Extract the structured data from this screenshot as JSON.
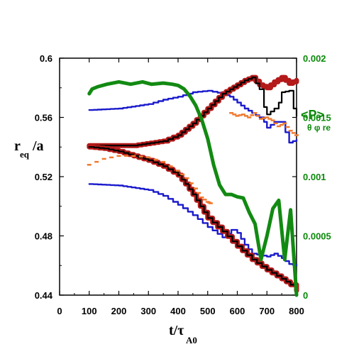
{
  "chart_data": {
    "type": "line",
    "xlabel_main": "t/τ",
    "xlabel_sub": "A0",
    "ylabel_main": "r",
    "ylabel_sub": "eq",
    "ylabel_tail": "/a",
    "y2label_main": "<P>",
    "y2label_sub": "θ φ re",
    "xlim": [
      0,
      800
    ],
    "ylim": [
      0.44,
      0.6
    ],
    "y2lim": [
      0,
      0.002
    ],
    "x_ticks": [
      "0",
      "100",
      "200",
      "300",
      "400",
      "500",
      "600",
      "700",
      "800"
    ],
    "y_ticks": [
      "0.44",
      "0.48",
      "0.52",
      "0.56",
      "0.6"
    ],
    "y2_ticks": [
      "0",
      "0.0005",
      "0.001",
      "0.0015",
      "0.002"
    ],
    "colors": {
      "red": "#b41a1a",
      "black": "#000000",
      "blue": "#1a1acc",
      "orange": "#f07a30",
      "green": "#128a12"
    },
    "series": [
      {
        "key": "red_upper",
        "axis": "left",
        "color": "red",
        "style": "thick",
        "x": [
          100,
          250,
          350,
          400,
          425,
          450,
          475,
          500,
          525,
          550,
          575,
          600,
          625,
          650,
          675,
          700,
          725,
          750,
          775,
          800
        ],
        "y": [
          0.541,
          0.541,
          0.544,
          0.548,
          0.552,
          0.556,
          0.561,
          0.566,
          0.571,
          0.576,
          0.579,
          0.582,
          0.585,
          0.587,
          0.582,
          0.58,
          0.584,
          0.587,
          0.583,
          0.585
        ]
      },
      {
        "key": "black_upper",
        "axis": "left",
        "color": "black",
        "style": "medium",
        "x": [
          100,
          250,
          350,
          400,
          425,
          450,
          475,
          500,
          525,
          550,
          575,
          600,
          625,
          650,
          675,
          690,
          700,
          725,
          740,
          750,
          775,
          790,
          800
        ],
        "y": [
          0.541,
          0.541,
          0.544,
          0.548,
          0.552,
          0.556,
          0.561,
          0.566,
          0.571,
          0.576,
          0.579,
          0.582,
          0.585,
          0.587,
          0.579,
          0.567,
          0.562,
          0.566,
          0.57,
          0.577,
          0.578,
          0.566,
          0.561
        ]
      },
      {
        "key": "red_lower",
        "axis": "left",
        "color": "red",
        "style": "thick",
        "x": [
          100,
          150,
          200,
          250,
          300,
          350,
          400,
          425,
          450,
          475,
          500,
          550,
          600,
          650,
          700,
          750,
          780,
          800
        ],
        "y": [
          0.54,
          0.539,
          0.537,
          0.534,
          0.531,
          0.527,
          0.521,
          0.515,
          0.508,
          0.5,
          0.492,
          0.483,
          0.473,
          0.464,
          0.457,
          0.451,
          0.447,
          0.443
        ]
      },
      {
        "key": "black_lower",
        "axis": "left",
        "color": "black",
        "style": "medium",
        "x": [
          100,
          150,
          200,
          250,
          300,
          350,
          400,
          425,
          450,
          475,
          500,
          550,
          600,
          650,
          700,
          750,
          780,
          800
        ],
        "y": [
          0.54,
          0.539,
          0.537,
          0.534,
          0.531,
          0.527,
          0.521,
          0.515,
          0.508,
          0.5,
          0.492,
          0.483,
          0.473,
          0.464,
          0.457,
          0.451,
          0.447,
          0.443
        ]
      },
      {
        "key": "blue_upper",
        "axis": "left",
        "color": "blue",
        "style": "thin",
        "x": [
          100,
          200,
          300,
          350,
          400,
          450,
          500,
          550,
          575,
          600,
          625,
          650,
          675,
          690,
          700,
          725,
          750,
          775,
          800
        ],
        "y": [
          0.565,
          0.566,
          0.569,
          0.572,
          0.574,
          0.577,
          0.578,
          0.576,
          0.574,
          0.57,
          0.566,
          0.563,
          0.56,
          0.557,
          0.553,
          0.557,
          0.557,
          0.543,
          0.545
        ]
      },
      {
        "key": "blue_lower",
        "axis": "left",
        "color": "blue",
        "style": "thin",
        "x": [
          100,
          200,
          300,
          350,
          400,
          450,
          500,
          550,
          580,
          600,
          625,
          650,
          700,
          725,
          750,
          775,
          800
        ],
        "y": [
          0.515,
          0.514,
          0.511,
          0.507,
          0.501,
          0.494,
          0.486,
          0.479,
          0.484,
          0.482,
          0.474,
          0.468,
          0.466,
          0.468,
          0.465,
          0.461,
          0.46
        ]
      },
      {
        "key": "green_pressure",
        "axis": "right",
        "color": "green",
        "style": "thickest",
        "x": [
          100,
          110,
          130,
          160,
          200,
          240,
          280,
          310,
          350,
          380,
          400,
          420,
          440,
          460,
          480,
          500,
          520,
          540,
          560,
          580,
          600,
          620,
          640,
          660,
          680,
          700,
          720,
          740,
          760,
          780,
          800
        ],
        "y": [
          0.0017,
          0.00174,
          0.00176,
          0.00178,
          0.0018,
          0.00178,
          0.0018,
          0.00178,
          0.00179,
          0.00178,
          0.00177,
          0.00174,
          0.00168,
          0.0016,
          0.00148,
          0.00132,
          0.0011,
          0.00093,
          0.00085,
          0.00085,
          0.00083,
          0.00082,
          0.0007,
          0.0006,
          0.0003,
          0.0005,
          0.00073,
          0.0008,
          0.0003,
          0.00072,
          0.0
        ]
      },
      {
        "key": "orange_upper",
        "axis": "left",
        "color": "orange",
        "style": "dash",
        "x": [
          580,
          600,
          620,
          640,
          660,
          680,
          700,
          720,
          740,
          760,
          780,
          800
        ],
        "y": [
          0.563,
          0.561,
          0.562,
          0.56,
          0.563,
          0.559,
          0.56,
          0.558,
          0.554,
          0.556,
          0.551,
          0.548
        ]
      },
      {
        "key": "orange_lower",
        "axis": "left",
        "color": "orange",
        "style": "dash",
        "x": [
          100,
          150,
          200,
          250,
          300,
          350,
          400,
          430,
          460,
          480,
          500,
          510
        ],
        "y": [
          0.528,
          0.532,
          0.534,
          0.534,
          0.533,
          0.53,
          0.524,
          0.519,
          0.512,
          0.506,
          0.503,
          0.502
        ]
      }
    ]
  }
}
